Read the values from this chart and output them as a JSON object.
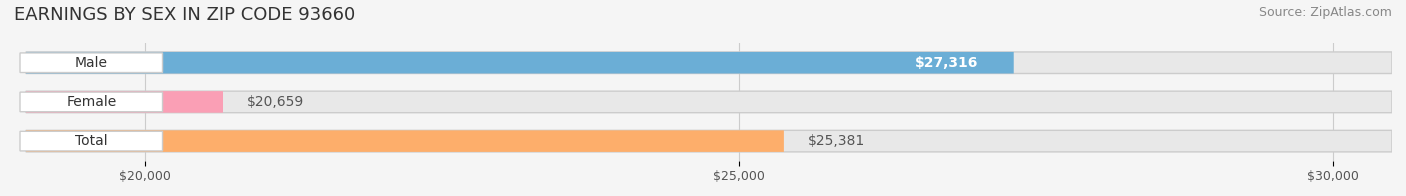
{
  "title": "EARNINGS BY SEX IN ZIP CODE 93660",
  "source": "Source: ZipAtlas.com",
  "categories": [
    "Male",
    "Female",
    "Total"
  ],
  "values": [
    27316,
    20659,
    25381
  ],
  "bar_colors": [
    "#6baed6",
    "#fa9fb5",
    "#fdae6b"
  ],
  "label_colors": [
    "#ffffff",
    "#555555",
    "#555555"
  ],
  "value_labels": [
    "$27,316",
    "$20,659",
    "$25,381"
  ],
  "xlim": [
    19000,
    30500
  ],
  "xticks": [
    20000,
    25000,
    30000
  ],
  "xtick_labels": [
    "$20,000",
    "$25,000",
    "$30,000"
  ],
  "background_color": "#f0f0f0",
  "bar_background": "#e8e8e8",
  "title_fontsize": 13,
  "source_fontsize": 9,
  "label_fontsize": 10,
  "value_fontsize": 10,
  "bar_height": 0.55,
  "fig_width": 14.06,
  "fig_height": 1.96
}
